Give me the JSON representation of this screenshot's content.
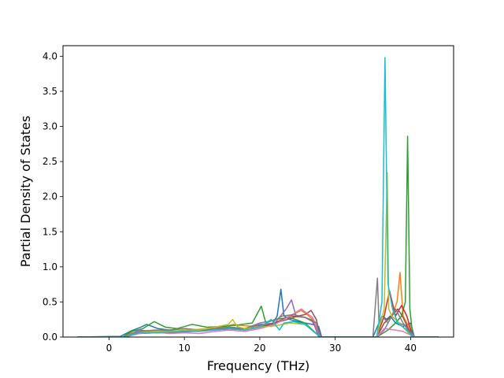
{
  "chart_data": {
    "type": "line",
    "xlabel": "Frequency (THz)",
    "ylabel": "Partial Density of States",
    "xlim": [
      -6.1,
      45.7
    ],
    "ylim": [
      0,
      4.15
    ],
    "xticks": [
      0,
      10,
      20,
      30,
      40
    ],
    "yticks": [
      0.0,
      0.5,
      1.0,
      1.5,
      2.0,
      2.5,
      3.0,
      3.5,
      4.0
    ],
    "ytick_labels": [
      "0.0",
      "0.5",
      "1.0",
      "1.5",
      "2.0",
      "2.5",
      "3.0",
      "3.5",
      "4.0"
    ],
    "grid": false,
    "legend": "none",
    "series": [
      {
        "color": "#1f77b4",
        "x": [
          -4.2,
          1.5,
          3,
          4.2,
          5,
          6.5,
          8,
          10,
          12,
          14,
          16,
          18,
          20.5,
          21.5,
          22.3,
          22.8,
          23.2,
          24,
          25,
          26,
          27,
          27.8,
          28.2,
          35,
          35.8,
          36.3,
          36.8,
          37.3,
          38,
          39,
          40,
          40.5,
          43.7
        ],
        "y": [
          0,
          0.01,
          0.09,
          0.14,
          0.18,
          0.12,
          0.1,
          0.12,
          0.1,
          0.12,
          0.14,
          0.12,
          0.18,
          0.15,
          0.3,
          0.68,
          0.3,
          0.25,
          0.22,
          0.2,
          0.18,
          0.15,
          0,
          0,
          0.2,
          0.3,
          0.25,
          0.3,
          0.2,
          0.15,
          0.2,
          0,
          0
        ]
      },
      {
        "color": "#ff7f0e",
        "x": [
          -4.2,
          1.8,
          3,
          5,
          7,
          9,
          11,
          13,
          15,
          16.5,
          18,
          20,
          22,
          24,
          25.5,
          26.5,
          27.5,
          28,
          35.5,
          36.5,
          37.5,
          38.2,
          38.6,
          39,
          39.5,
          40.5,
          43.7
        ],
        "y": [
          0,
          0,
          0.06,
          0.08,
          0.1,
          0.08,
          0.1,
          0.12,
          0.14,
          0.18,
          0.16,
          0.15,
          0.2,
          0.3,
          0.38,
          0.3,
          0.2,
          0,
          0,
          0.2,
          0.3,
          0.5,
          0.92,
          0.3,
          0.2,
          0,
          0
        ]
      },
      {
        "color": "#2ca02c",
        "x": [
          -4.2,
          1.8,
          3,
          4.5,
          6,
          7.5,
          9,
          11,
          13,
          15,
          17,
          19,
          19.8,
          20.2,
          20.8,
          22,
          24,
          26,
          28,
          35.5,
          37,
          38,
          38.8,
          39.3,
          39.6,
          39.9,
          40.3,
          43.7
        ],
        "y": [
          0,
          0,
          0.08,
          0.12,
          0.22,
          0.14,
          0.12,
          0.18,
          0.14,
          0.15,
          0.17,
          0.2,
          0.36,
          0.44,
          0.2,
          0.25,
          0.28,
          0.2,
          0,
          0,
          0.1,
          0.2,
          0.3,
          0.5,
          2.86,
          0.4,
          0,
          0
        ]
      },
      {
        "color": "#d62728",
        "x": [
          -4.2,
          2,
          4,
          6,
          8,
          10,
          12,
          14,
          16,
          18,
          20,
          22,
          24,
          26,
          27,
          28,
          35.5,
          36.5,
          37.2,
          38,
          38.8,
          39.5,
          40.3,
          43.7
        ],
        "y": [
          0,
          0,
          0.06,
          0.07,
          0.09,
          0.08,
          0.1,
          0.12,
          0.12,
          0.1,
          0.14,
          0.2,
          0.3,
          0.28,
          0.22,
          0,
          0,
          0.3,
          0.66,
          0.3,
          0.45,
          0.3,
          0,
          0
        ]
      },
      {
        "color": "#9467bd",
        "x": [
          -4.2,
          2.2,
          4,
          6,
          8,
          10,
          12,
          14,
          16,
          18,
          20,
          22,
          23.5,
          24.2,
          24.8,
          26,
          27,
          27.8,
          35.5,
          36.5,
          37.5,
          38.5,
          39.5,
          40.5,
          43.7
        ],
        "y": [
          0,
          0,
          0.1,
          0.08,
          0.06,
          0.07,
          0.09,
          0.12,
          0.1,
          0.12,
          0.18,
          0.2,
          0.4,
          0.53,
          0.3,
          0.28,
          0.24,
          0,
          0,
          0.1,
          0.3,
          0.2,
          0.15,
          0,
          0
        ]
      },
      {
        "color": "#8c564b",
        "x": [
          -4.2,
          2,
          4,
          6,
          8,
          10,
          12,
          14,
          16,
          18,
          20,
          22,
          24,
          25,
          26,
          26.8,
          27.5,
          28,
          35.5,
          36.5,
          37.5,
          38.3,
          39,
          40.2,
          43.7
        ],
        "y": [
          0,
          0,
          0.05,
          0.06,
          0.06,
          0.08,
          0.09,
          0.1,
          0.12,
          0.12,
          0.14,
          0.2,
          0.26,
          0.3,
          0.32,
          0.38,
          0.25,
          0,
          0,
          0.2,
          0.3,
          0.4,
          0.28,
          0,
          0
        ]
      },
      {
        "color": "#e377c2",
        "x": [
          -4.2,
          2,
          4,
          6,
          8,
          10,
          12,
          14,
          16,
          18,
          20,
          22,
          24,
          25.5,
          27,
          28,
          35.5,
          36.5,
          38,
          39,
          40.5,
          43.7
        ],
        "y": [
          0,
          0,
          0.05,
          0.07,
          0.05,
          0.06,
          0.05,
          0.08,
          0.1,
          0.08,
          0.12,
          0.18,
          0.3,
          0.4,
          0.28,
          0,
          0,
          0.12,
          0.1,
          0.08,
          0,
          0
        ]
      },
      {
        "color": "#7f7f7f",
        "x": [
          -4.2,
          2,
          4,
          6,
          8,
          10,
          12,
          14,
          16,
          18,
          20,
          22,
          23,
          24.5,
          26,
          27.5,
          28,
          35,
          35.6,
          35.8,
          36.2,
          37,
          38,
          39,
          40.3,
          43.7
        ],
        "y": [
          0,
          0,
          0.08,
          0.1,
          0.1,
          0.12,
          0.1,
          0.12,
          0.14,
          0.12,
          0.2,
          0.24,
          0.3,
          0.32,
          0.28,
          0.2,
          0,
          0,
          0.84,
          0.2,
          0.3,
          0.2,
          0.4,
          0.2,
          0,
          0
        ]
      },
      {
        "color": "#bcbd22",
        "x": [
          -4.2,
          2,
          4,
          6,
          8,
          10,
          12,
          14,
          15.8,
          16.4,
          17,
          18,
          20,
          22,
          24,
          26,
          28,
          35.5,
          36.5,
          36.9,
          37.1,
          37.5,
          38.5,
          40.2,
          43.7
        ],
        "y": [
          0,
          0,
          0.06,
          0.08,
          0.08,
          0.1,
          0.1,
          0.14,
          0.18,
          0.25,
          0.15,
          0.12,
          0.14,
          0.16,
          0.2,
          0.18,
          0,
          0,
          0.4,
          2.34,
          0.4,
          0.3,
          0.2,
          0,
          0
        ]
      },
      {
        "color": "#17becf",
        "x": [
          -4.2,
          2,
          4,
          6,
          8,
          10,
          12,
          14,
          16,
          18,
          20,
          21.5,
          22.6,
          23.2,
          24.5,
          26,
          28,
          35.5,
          36.2,
          36.6,
          37,
          37.6,
          38.3,
          39.5,
          40.3,
          43.7
        ],
        "y": [
          0,
          0,
          0.06,
          0.06,
          0.07,
          0.08,
          0.08,
          0.1,
          0.12,
          0.1,
          0.14,
          0.25,
          0.1,
          0.2,
          0.22,
          0.18,
          0,
          0,
          0.5,
          3.98,
          0.76,
          0.4,
          0.2,
          0.1,
          0,
          0
        ]
      }
    ]
  }
}
